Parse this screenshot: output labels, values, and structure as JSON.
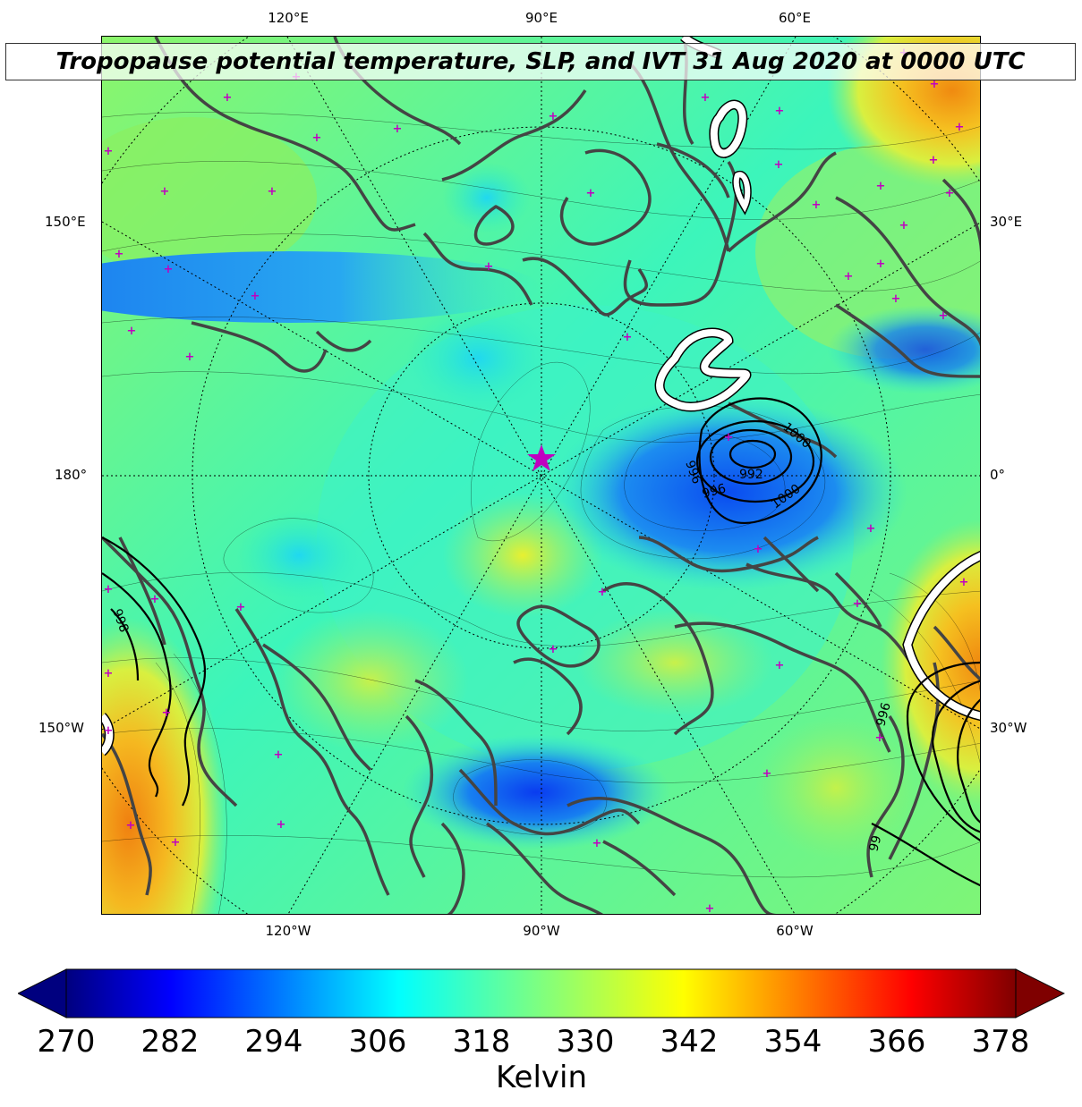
{
  "title": "Tropopause potential temperature, SLP, and IVT 31 Aug 2020 at 0000 UTC",
  "longitude_labels": {
    "top": [
      "120°E",
      "90°E",
      "60°E"
    ],
    "bottom": [
      "120°W",
      "90°W",
      "60°W"
    ],
    "left": [
      "150°E",
      "180°",
      "150°W"
    ],
    "right": [
      "30°E",
      "0°",
      "30°W"
    ]
  },
  "slp_contour_labels": [
    "1000",
    "996",
    "992",
    "996",
    "1000",
    "996",
    "996",
    "99",
    "998"
  ],
  "colorbar": {
    "ticks": [
      "270",
      "282",
      "294",
      "306",
      "318",
      "330",
      "342",
      "354",
      "366",
      "378"
    ],
    "label": "Kelvin",
    "extend": "both",
    "colormap": "jet",
    "colors": [
      "#00007f",
      "#0000ff",
      "#007fff",
      "#00ffff",
      "#7fff7f",
      "#ffff00",
      "#ff7f00",
      "#ff0000",
      "#7f0000"
    ]
  },
  "colors": {
    "coastline": "#444444",
    "marker": "#c000c0",
    "ivt_contour": "#ffffff",
    "slp_contour": "#000000"
  },
  "markers": {
    "center": "star",
    "points": "plus"
  }
}
